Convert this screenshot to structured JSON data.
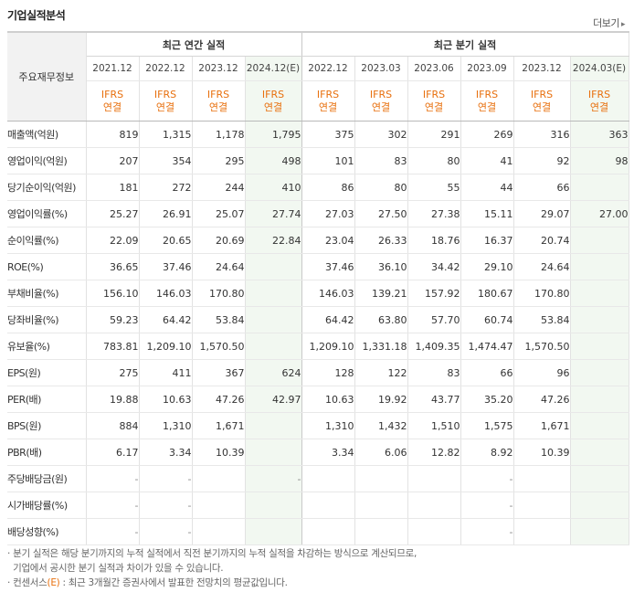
{
  "section_title": "기업실적분석",
  "more_label": "더보기",
  "corner_label": "주요재무정보",
  "group_annual": "최근 연간 실적",
  "group_quarter": "최근 분기 실적",
  "periods": [
    "2021.12",
    "2022.12",
    "2023.12",
    "2024.12(E)",
    "2022.12",
    "2023.03",
    "2023.06",
    "2023.09",
    "2023.12",
    "2024.03(E)"
  ],
  "ifrs_line1": "IFRS",
  "ifrs_line2": "연결",
  "rows": [
    {
      "name": "매출액(억원)",
      "values": [
        "819",
        "1,315",
        "1,178",
        "1,795",
        "375",
        "302",
        "291",
        "269",
        "316",
        "363"
      ]
    },
    {
      "name": "영업이익(억원)",
      "values": [
        "207",
        "354",
        "295",
        "498",
        "101",
        "83",
        "80",
        "41",
        "92",
        "98"
      ]
    },
    {
      "name": "당기순이익(억원)",
      "values": [
        "181",
        "272",
        "244",
        "410",
        "86",
        "80",
        "55",
        "44",
        "66",
        ""
      ]
    },
    {
      "name": "영업이익률(%)",
      "values": [
        "25.27",
        "26.91",
        "25.07",
        "27.74",
        "27.03",
        "27.50",
        "27.38",
        "15.11",
        "29.07",
        "27.00"
      ]
    },
    {
      "name": "순이익률(%)",
      "values": [
        "22.09",
        "20.65",
        "20.69",
        "22.84",
        "23.04",
        "26.33",
        "18.76",
        "16.37",
        "20.74",
        ""
      ]
    },
    {
      "name": "ROE(%)",
      "values": [
        "36.65",
        "37.46",
        "24.64",
        "",
        "37.46",
        "36.10",
        "34.42",
        "29.10",
        "24.64",
        ""
      ]
    },
    {
      "name": "부채비율(%)",
      "values": [
        "156.10",
        "146.03",
        "170.80",
        "",
        "146.03",
        "139.21",
        "157.92",
        "180.67",
        "170.80",
        ""
      ]
    },
    {
      "name": "당좌비율(%)",
      "values": [
        "59.23",
        "64.42",
        "53.84",
        "",
        "64.42",
        "63.80",
        "57.70",
        "60.74",
        "53.84",
        ""
      ]
    },
    {
      "name": "유보율(%)",
      "values": [
        "783.81",
        "1,209.10",
        "1,570.50",
        "",
        "1,209.10",
        "1,331.18",
        "1,409.35",
        "1,474.47",
        "1,570.50",
        ""
      ]
    },
    {
      "name": "EPS(원)",
      "values": [
        "275",
        "411",
        "367",
        "624",
        "128",
        "122",
        "83",
        "66",
        "96",
        ""
      ]
    },
    {
      "name": "PER(배)",
      "values": [
        "19.88",
        "10.63",
        "47.26",
        "42.97",
        "10.63",
        "19.92",
        "43.77",
        "35.20",
        "47.26",
        ""
      ]
    },
    {
      "name": "BPS(원)",
      "values": [
        "884",
        "1,310",
        "1,671",
        "",
        "1,310",
        "1,432",
        "1,510",
        "1,575",
        "1,671",
        ""
      ]
    },
    {
      "name": "PBR(배)",
      "values": [
        "6.17",
        "3.34",
        "10.39",
        "",
        "3.34",
        "6.06",
        "12.82",
        "8.92",
        "10.39",
        ""
      ]
    },
    {
      "name": "주당배당금(원)",
      "values": [
        "-",
        "-",
        "",
        "-",
        "",
        "",
        "",
        "-",
        "",
        ""
      ]
    },
    {
      "name": "시가배당률(%)",
      "values": [
        "-",
        "-",
        "",
        "",
        "",
        "",
        "",
        "-",
        "",
        ""
      ]
    },
    {
      "name": "배당성향(%)",
      "values": [
        "-",
        "-",
        "",
        "",
        "",
        "",
        "",
        "-",
        "",
        ""
      ]
    }
  ],
  "group_starts": [
    0,
    3,
    6,
    9,
    13
  ],
  "notes": {
    "line1": "분기 실적은 해당 분기까지의 누적 실적에서 직전 분기까지의 누적 실적을 차감하는 방식으로 계산되므로,",
    "line2": "기업에서 공시한 분기 실적과 차이가 있을 수 있습니다.",
    "line3_prefix": "컨센서스",
    "line3_e": "(E)",
    "line3_rest": " : 최근 3개월간 증권사에서 발표한 전망치의 평균값입니다."
  }
}
